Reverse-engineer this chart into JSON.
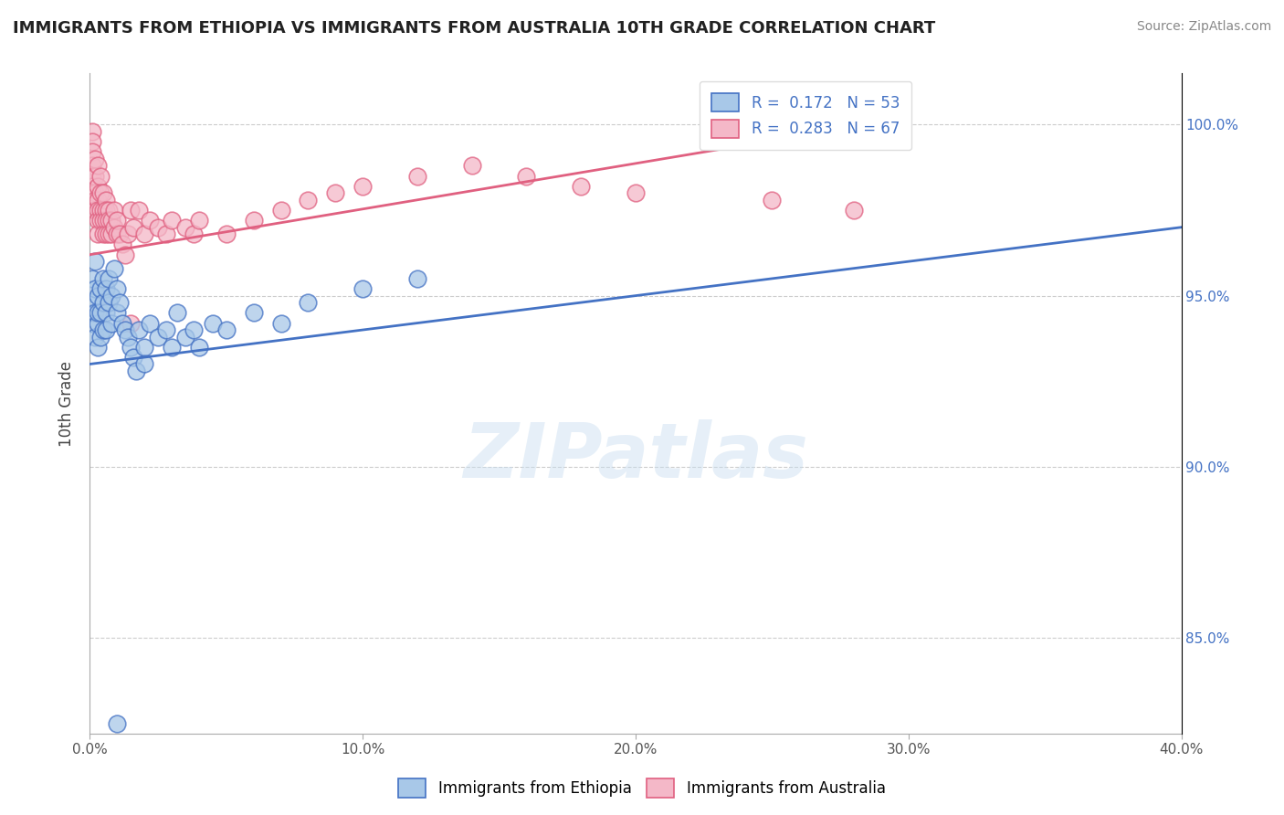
{
  "title": "IMMIGRANTS FROM ETHIOPIA VS IMMIGRANTS FROM AUSTRALIA 10TH GRADE CORRELATION CHART",
  "source": "Source: ZipAtlas.com",
  "ylabel": "10th Grade",
  "ylabel_ticks": [
    "85.0%",
    "90.0%",
    "95.0%",
    "100.0%"
  ],
  "ylabel_values": [
    0.85,
    0.9,
    0.95,
    1.0
  ],
  "ylim": [
    0.822,
    1.015
  ],
  "xlim": [
    0.0,
    0.4
  ],
  "legend_blue_label": "R =  0.172   N = 53",
  "legend_pink_label": "R =  0.283   N = 67",
  "legend_blue_color": "#a8c8e8",
  "legend_pink_color": "#f4b8c8",
  "blue_color": "#4472c4",
  "pink_color": "#e06080",
  "watermark": "ZIPatlas",
  "blue_trend_x": [
    0.0,
    0.4
  ],
  "blue_trend_y": [
    0.93,
    0.97
  ],
  "pink_trend_x": [
    0.0,
    0.3
  ],
  "pink_trend_y": [
    0.962,
    1.002
  ],
  "blue_scatter_x": [
    0.001,
    0.001,
    0.001,
    0.002,
    0.002,
    0.002,
    0.002,
    0.003,
    0.003,
    0.003,
    0.003,
    0.004,
    0.004,
    0.004,
    0.005,
    0.005,
    0.005,
    0.006,
    0.006,
    0.006,
    0.007,
    0.007,
    0.008,
    0.008,
    0.009,
    0.01,
    0.01,
    0.011,
    0.012,
    0.013,
    0.014,
    0.015,
    0.016,
    0.017,
    0.018,
    0.02,
    0.022,
    0.025,
    0.028,
    0.03,
    0.032,
    0.035,
    0.038,
    0.04,
    0.045,
    0.05,
    0.06,
    0.07,
    0.08,
    0.1,
    0.02,
    0.12,
    0.01
  ],
  "blue_scatter_y": [
    0.955,
    0.948,
    0.942,
    0.952,
    0.945,
    0.938,
    0.96,
    0.942,
    0.935,
    0.95,
    0.945,
    0.938,
    0.952,
    0.945,
    0.94,
    0.948,
    0.955,
    0.945,
    0.94,
    0.952,
    0.948,
    0.955,
    0.95,
    0.942,
    0.958,
    0.945,
    0.952,
    0.948,
    0.942,
    0.94,
    0.938,
    0.935,
    0.932,
    0.928,
    0.94,
    0.935,
    0.942,
    0.938,
    0.94,
    0.935,
    0.945,
    0.938,
    0.94,
    0.935,
    0.942,
    0.94,
    0.945,
    0.942,
    0.948,
    0.952,
    0.93,
    0.955,
    0.825
  ],
  "pink_scatter_x": [
    0.001,
    0.001,
    0.001,
    0.001,
    0.001,
    0.001,
    0.002,
    0.002,
    0.002,
    0.002,
    0.002,
    0.003,
    0.003,
    0.003,
    0.003,
    0.003,
    0.003,
    0.004,
    0.004,
    0.004,
    0.004,
    0.005,
    0.005,
    0.005,
    0.005,
    0.006,
    0.006,
    0.006,
    0.006,
    0.007,
    0.007,
    0.007,
    0.008,
    0.008,
    0.009,
    0.009,
    0.01,
    0.01,
    0.011,
    0.012,
    0.013,
    0.014,
    0.015,
    0.016,
    0.018,
    0.02,
    0.022,
    0.025,
    0.028,
    0.03,
    0.035,
    0.038,
    0.04,
    0.05,
    0.06,
    0.07,
    0.08,
    0.09,
    0.1,
    0.12,
    0.14,
    0.16,
    0.18,
    0.2,
    0.25,
    0.28,
    0.015
  ],
  "pink_scatter_y": [
    0.998,
    0.995,
    0.992,
    0.988,
    0.985,
    0.982,
    0.99,
    0.985,
    0.98,
    0.978,
    0.975,
    0.988,
    0.982,
    0.978,
    0.975,
    0.972,
    0.968,
    0.985,
    0.98,
    0.975,
    0.972,
    0.98,
    0.975,
    0.972,
    0.968,
    0.978,
    0.975,
    0.972,
    0.968,
    0.975,
    0.972,
    0.968,
    0.972,
    0.968,
    0.975,
    0.97,
    0.968,
    0.972,
    0.968,
    0.965,
    0.962,
    0.968,
    0.975,
    0.97,
    0.975,
    0.968,
    0.972,
    0.97,
    0.968,
    0.972,
    0.97,
    0.968,
    0.972,
    0.968,
    0.972,
    0.975,
    0.978,
    0.98,
    0.982,
    0.985,
    0.988,
    0.985,
    0.982,
    0.98,
    0.978,
    0.975,
    0.942
  ],
  "xtick_positions": [
    0.0,
    0.1,
    0.2,
    0.3,
    0.4
  ],
  "xtick_labels": [
    "0.0%",
    "10.0%",
    "20.0%",
    "30.0%",
    "40.0%"
  ]
}
